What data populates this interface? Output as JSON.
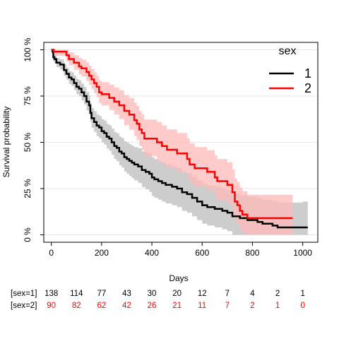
{
  "chart_data": {
    "type": "line",
    "subtype": "kaplan-meier",
    "xlabel": "Days",
    "ylabel": "Survival probability",
    "xlim": [
      -30,
      1060
    ],
    "ylim": [
      -0.04,
      1.04
    ],
    "x_ticks": [
      0,
      200,
      400,
      600,
      800,
      1000
    ],
    "y_ticks": [
      0,
      0.25,
      0.5,
      0.75,
      1.0
    ],
    "y_tick_labels": [
      "0 %",
      "25 %",
      "50 %",
      "75 %",
      "100 %"
    ],
    "grid": "horizontal",
    "legend": {
      "title": "sex",
      "position": "top-right",
      "entries": [
        "1",
        "2"
      ]
    },
    "series": [
      {
        "name": "1",
        "color": "#000000",
        "band_color": "#c8c8c8",
        "points": [
          [
            0,
            1.0
          ],
          [
            5,
            0.99
          ],
          [
            8,
            0.96
          ],
          [
            12,
            0.95
          ],
          [
            20,
            0.93
          ],
          [
            35,
            0.92
          ],
          [
            50,
            0.89
          ],
          [
            60,
            0.87
          ],
          [
            70,
            0.85
          ],
          [
            80,
            0.84
          ],
          [
            90,
            0.82
          ],
          [
            100,
            0.8
          ],
          [
            110,
            0.79
          ],
          [
            120,
            0.77
          ],
          [
            130,
            0.75
          ],
          [
            140,
            0.72
          ],
          [
            150,
            0.7
          ],
          [
            155,
            0.66
          ],
          [
            160,
            0.63
          ],
          [
            170,
            0.61
          ],
          [
            180,
            0.59
          ],
          [
            190,
            0.58
          ],
          [
            200,
            0.56
          ],
          [
            210,
            0.55
          ],
          [
            220,
            0.53
          ],
          [
            230,
            0.52
          ],
          [
            240,
            0.5
          ],
          [
            250,
            0.48
          ],
          [
            260,
            0.47
          ],
          [
            270,
            0.45
          ],
          [
            280,
            0.44
          ],
          [
            290,
            0.42
          ],
          [
            300,
            0.41
          ],
          [
            310,
            0.4
          ],
          [
            320,
            0.39
          ],
          [
            330,
            0.38
          ],
          [
            345,
            0.37
          ],
          [
            360,
            0.35
          ],
          [
            375,
            0.34
          ],
          [
            390,
            0.33
          ],
          [
            400,
            0.31
          ],
          [
            410,
            0.3
          ],
          [
            425,
            0.29
          ],
          [
            440,
            0.28
          ],
          [
            455,
            0.27
          ],
          [
            480,
            0.26
          ],
          [
            500,
            0.25
          ],
          [
            520,
            0.23
          ],
          [
            540,
            0.22
          ],
          [
            560,
            0.2
          ],
          [
            580,
            0.18
          ],
          [
            600,
            0.16
          ],
          [
            620,
            0.15
          ],
          [
            650,
            0.14
          ],
          [
            680,
            0.13
          ],
          [
            700,
            0.12
          ],
          [
            720,
            0.1
          ],
          [
            750,
            0.09
          ],
          [
            780,
            0.08
          ],
          [
            820,
            0.07
          ],
          [
            840,
            0.06
          ],
          [
            880,
            0.05
          ],
          [
            900,
            0.04
          ],
          [
            1000,
            0.04
          ],
          [
            1020,
            0.04
          ]
        ]
      },
      {
        "name": "2",
        "color": "#ff0000",
        "band_color": "#ffb8b8",
        "points": [
          [
            0,
            1.0
          ],
          [
            10,
            0.99
          ],
          [
            60,
            0.97
          ],
          [
            70,
            0.95
          ],
          [
            90,
            0.93
          ],
          [
            110,
            0.91
          ],
          [
            120,
            0.9
          ],
          [
            140,
            0.88
          ],
          [
            150,
            0.86
          ],
          [
            160,
            0.84
          ],
          [
            170,
            0.82
          ],
          [
            180,
            0.8
          ],
          [
            190,
            0.77
          ],
          [
            200,
            0.76
          ],
          [
            230,
            0.74
          ],
          [
            250,
            0.72
          ],
          [
            270,
            0.7
          ],
          [
            290,
            0.67
          ],
          [
            310,
            0.65
          ],
          [
            330,
            0.62
          ],
          [
            340,
            0.6
          ],
          [
            350,
            0.57
          ],
          [
            360,
            0.55
          ],
          [
            370,
            0.52
          ],
          [
            420,
            0.5
          ],
          [
            440,
            0.48
          ],
          [
            460,
            0.46
          ],
          [
            500,
            0.44
          ],
          [
            540,
            0.41
          ],
          [
            550,
            0.38
          ],
          [
            570,
            0.36
          ],
          [
            620,
            0.34
          ],
          [
            650,
            0.31
          ],
          [
            660,
            0.29
          ],
          [
            700,
            0.27
          ],
          [
            720,
            0.23
          ],
          [
            730,
            0.18
          ],
          [
            740,
            0.16
          ],
          [
            750,
            0.13
          ],
          [
            760,
            0.11
          ],
          [
            780,
            0.09
          ],
          [
            960,
            0.09
          ]
        ]
      }
    ],
    "risk_table": {
      "x": [
        0,
        100,
        200,
        300,
        400,
        500,
        600,
        700,
        800,
        900,
        1000
      ],
      "rows": [
        {
          "label": "[sex=1]",
          "color": "#000000",
          "values": [
            "138",
            "114",
            "77",
            "43",
            "30",
            "20",
            "12",
            "7",
            "4",
            "2",
            "1"
          ]
        },
        {
          "label": "[sex=2]",
          "color": "#ff0000",
          "values": [
            "90",
            "82",
            "62",
            "42",
            "26",
            "21",
            "11",
            "7",
            "2",
            "1",
            "0"
          ]
        }
      ]
    }
  }
}
